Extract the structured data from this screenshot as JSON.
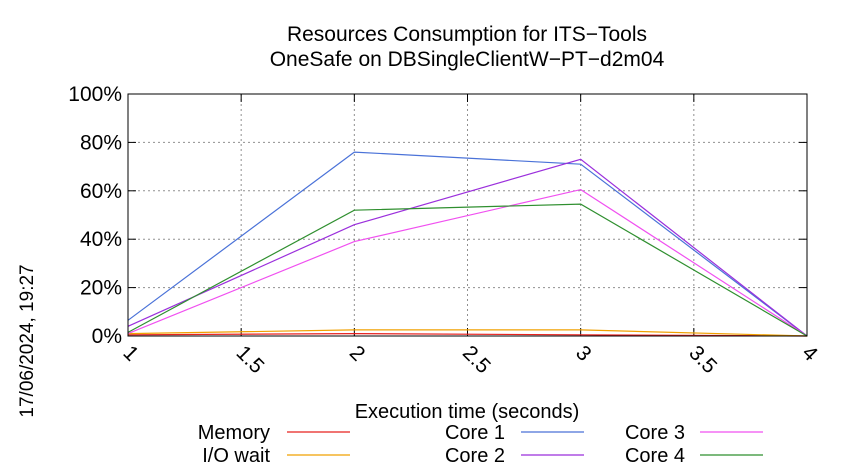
{
  "chart_data": {
    "type": "line",
    "title": "Resources Consumption for ITS−Tools",
    "subtitle": "OneSafe on DBSingleClientW−PT−d2m04",
    "xlabel": "Execution time (seconds)",
    "ylabel": "",
    "side_label": "17/06/2024, 19:27",
    "xlim": [
      1,
      4
    ],
    "ylim": [
      0,
      100
    ],
    "xticks": [
      "1",
      "1.5",
      "2",
      "2.5",
      "3",
      "3.5",
      "4"
    ],
    "yticks": [
      "0%",
      "20%",
      "40%",
      "60%",
      "80%",
      "100%"
    ],
    "grid": true,
    "x": [
      1,
      2,
      3,
      4
    ],
    "series": [
      {
        "name": "Memory",
        "color": "#e8221f",
        "values": [
          0.5,
          1.0,
          0.5,
          0
        ]
      },
      {
        "name": "I/O wait",
        "color": "#f0a000",
        "values": [
          1.0,
          2.5,
          2.5,
          0
        ]
      },
      {
        "name": "Core 1",
        "color": "#4a72d8",
        "values": [
          6.5,
          76,
          71,
          0
        ]
      },
      {
        "name": "Core 2",
        "color": "#9b2fdc",
        "values": [
          4,
          46,
          73,
          0
        ]
      },
      {
        "name": "Core 3",
        "color": "#f050f0",
        "values": [
          1,
          39,
          60.5,
          0
        ]
      },
      {
        "name": "Core 4",
        "color": "#2f8f2f",
        "values": [
          1.5,
          52,
          54.5,
          0
        ]
      }
    ]
  }
}
